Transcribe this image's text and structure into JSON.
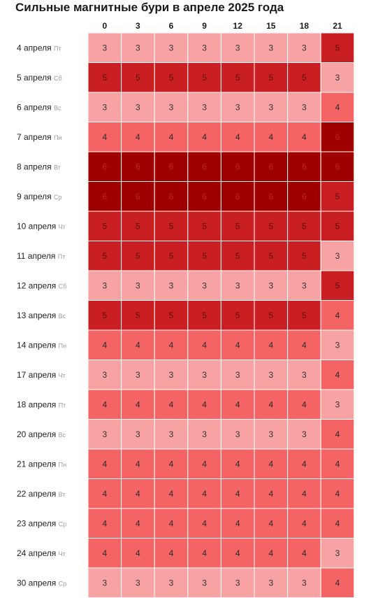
{
  "chart_data": {
    "type": "heatmap",
    "title": "Сильные магнитные бури в апреле 2025 года",
    "columns": [
      "0",
      "3",
      "6",
      "9",
      "12",
      "15",
      "18",
      "21"
    ],
    "rows": [
      {
        "date": "4 апреля",
        "weekday": "Пт",
        "values": [
          3,
          3,
          3,
          3,
          3,
          3,
          3,
          5
        ]
      },
      {
        "date": "5 апреля",
        "weekday": "Сб",
        "values": [
          5,
          5,
          5,
          5,
          5,
          5,
          5,
          3
        ]
      },
      {
        "date": "6 апреля",
        "weekday": "Вс",
        "values": [
          3,
          3,
          3,
          3,
          3,
          3,
          3,
          4
        ]
      },
      {
        "date": "7 апреля",
        "weekday": "Пн",
        "values": [
          4,
          4,
          4,
          4,
          4,
          4,
          4,
          6
        ]
      },
      {
        "date": "8 апреля",
        "weekday": "Вт",
        "values": [
          6,
          6,
          6,
          6,
          6,
          6,
          6,
          6
        ]
      },
      {
        "date": "9 апреля",
        "weekday": "Ср",
        "values": [
          6,
          6,
          6,
          6,
          6,
          6,
          6,
          5
        ]
      },
      {
        "date": "10 апреля",
        "weekday": "Чт",
        "values": [
          5,
          5,
          5,
          5,
          5,
          5,
          5,
          5
        ]
      },
      {
        "date": "11 апреля",
        "weekday": "Пт",
        "values": [
          5,
          5,
          5,
          5,
          5,
          5,
          5,
          3
        ]
      },
      {
        "date": "12 апреля",
        "weekday": "Сб",
        "values": [
          3,
          3,
          3,
          3,
          3,
          3,
          3,
          5
        ]
      },
      {
        "date": "13 апреля",
        "weekday": "Вс",
        "values": [
          5,
          5,
          5,
          5,
          5,
          5,
          5,
          4
        ]
      },
      {
        "date": "14 апреля",
        "weekday": "Пн",
        "values": [
          4,
          4,
          4,
          4,
          4,
          4,
          4,
          3
        ]
      },
      {
        "date": "17 апреля",
        "weekday": "Чт",
        "values": [
          3,
          3,
          3,
          3,
          3,
          3,
          3,
          4
        ]
      },
      {
        "date": "18 апреля",
        "weekday": "Пт",
        "values": [
          4,
          4,
          4,
          4,
          4,
          4,
          4,
          3
        ]
      },
      {
        "date": "20 апреля",
        "weekday": "Вс",
        "values": [
          3,
          3,
          3,
          3,
          3,
          3,
          3,
          4
        ]
      },
      {
        "date": "21 апреля",
        "weekday": "Пн",
        "values": [
          4,
          4,
          4,
          4,
          4,
          4,
          4,
          4
        ]
      },
      {
        "date": "22 апреля",
        "weekday": "Вт",
        "values": [
          4,
          4,
          4,
          4,
          4,
          4,
          4,
          4
        ]
      },
      {
        "date": "23 апреля",
        "weekday": "Ср",
        "values": [
          4,
          4,
          4,
          4,
          4,
          4,
          4,
          4
        ]
      },
      {
        "date": "24 апреля",
        "weekday": "Чт",
        "values": [
          4,
          4,
          4,
          4,
          4,
          4,
          4,
          3
        ]
      },
      {
        "date": "30 апреля",
        "weekday": "Ср",
        "values": [
          3,
          3,
          3,
          3,
          3,
          3,
          3,
          4
        ]
      }
    ],
    "colors": {
      "3": "#f8a3a3",
      "4": "#f46464",
      "5": "#c91f22",
      "6": "#9e0000"
    },
    "text_colors": {
      "3": "#333333",
      "4": "#2a2a2a",
      "5": "#5a0e0e",
      "6": "#c22222"
    },
    "grid": true
  }
}
